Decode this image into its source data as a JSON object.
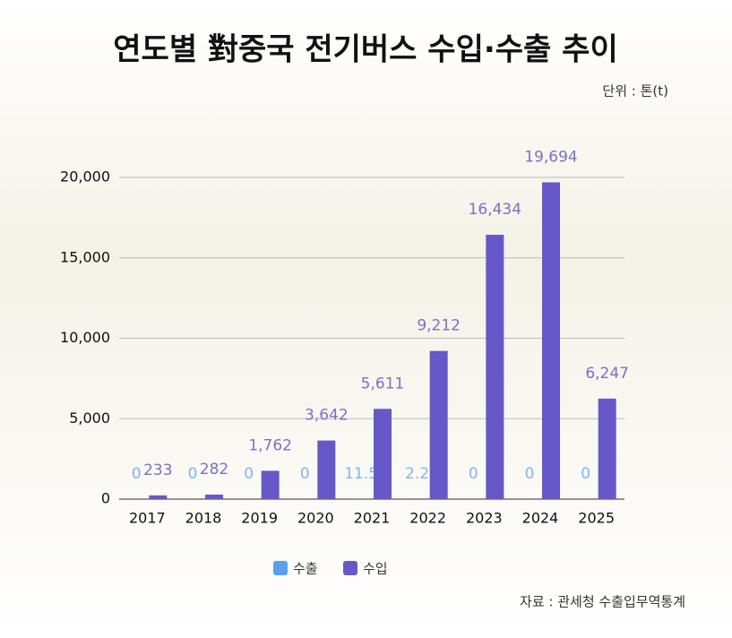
{
  "chart_data": {
    "type": "bar",
    "title": "연도별 對중국 전기버스 수입·수출 추이",
    "subtitle": "단위 : 톤(t)",
    "source": "자료 : 관세청 수출입무역통계",
    "categories": [
      "2017",
      "2018",
      "2019",
      "2020",
      "2021",
      "2022",
      "2023",
      "2024",
      "2025"
    ],
    "series": [
      {
        "name": "수출",
        "color": "#5aa0ea",
        "values": [
          0,
          0,
          0,
          0,
          11.5,
          2.2,
          0,
          0,
          0
        ]
      },
      {
        "name": "수입",
        "color": "#6658c8",
        "values": [
          233,
          282,
          1762,
          3642,
          5611,
          9212,
          16434,
          19694,
          6247
        ],
        "value_labels": [
          "233",
          "282",
          "1,762",
          "3,642",
          "5,611",
          "9,212",
          "16,434",
          "19,694",
          "6,247"
        ]
      }
    ],
    "ylim": [
      0,
      20000
    ],
    "yticks": [
      0,
      {
        "value": 5000,
        "label": "5,000"
      },
      {
        "value": 10000,
        "label": "10,000"
      },
      {
        "value": 15000,
        "label": "15,000"
      },
      {
        "value": 20000,
        "label": "20,000"
      }
    ],
    "grid": true
  }
}
